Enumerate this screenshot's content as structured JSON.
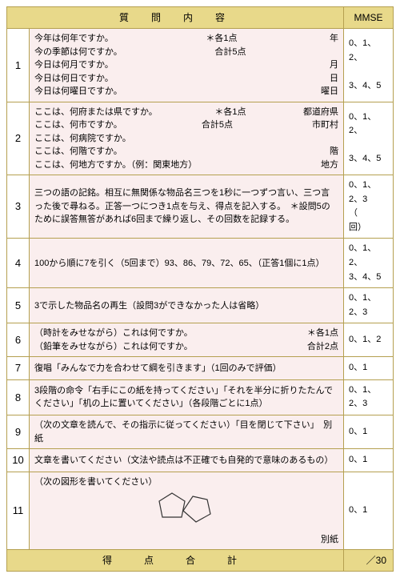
{
  "header": {
    "content": "質　問　内　容",
    "mmse": "MMSE"
  },
  "rows": [
    {
      "num": "1",
      "lines": [
        {
          "left": "今年は何年ですか。",
          "mid": "＊各1点",
          "right": "年"
        },
        {
          "left": "今の季節は何ですか。",
          "mid": "合計5点",
          "right": ""
        },
        {
          "left": "今日は何月ですか。",
          "mid": "",
          "right": "月"
        },
        {
          "left": "今日は何日ですか。",
          "mid": "",
          "right": "日"
        },
        {
          "left": "今日は何曜日ですか。",
          "mid": "",
          "right": "曜日"
        }
      ],
      "mmse": "0、1、2、\n\n3、4、5"
    },
    {
      "num": "2",
      "lines": [
        {
          "left": "ここは、何府または県ですか。",
          "mid": "＊各1点",
          "right": "都道府県"
        },
        {
          "left": "ここは、何市ですか。",
          "mid": "合計5点",
          "right": "市町村"
        },
        {
          "left": "ここは、何病院ですか。",
          "mid": "",
          "right": ""
        },
        {
          "left": "ここは、何階ですか。",
          "mid": "",
          "right": "階"
        },
        {
          "left": "ここは、何地方ですか。（例：関東地方）",
          "mid": "",
          "right": "地方"
        }
      ],
      "mmse": "0、1、2、\n\n3、4、5"
    },
    {
      "num": "3",
      "text": "三つの語の記銘。相互に無関係な物品名三つを1秒に一つずつ言い、三つ言った後で尋ねる。正答一つにつき1点を与え、得点を記入する。　＊設問5のために誤答無答があれば6回まで繰り返し、その回数を記録する。",
      "mmse": "0、1、2、3\n（　　回）"
    },
    {
      "num": "4",
      "text": "100から順に7を引く（5回まで）93、86、79、72、65、（正答1個に1点）",
      "mmse": "0、1、2、\n3、4、5"
    },
    {
      "num": "5",
      "text": "3で示した物品名の再生（設問3ができなかった人は省略）",
      "mmse": "0、1、2、3"
    },
    {
      "num": "6",
      "lines": [
        {
          "left": "（時計をみせながら）これは何ですか。",
          "mid": "",
          "right": "＊各1点"
        },
        {
          "left": "（鉛筆をみせながら）これは何ですか。",
          "mid": "",
          "right": "合計2点"
        }
      ],
      "mmse": "0、1、2"
    },
    {
      "num": "7",
      "text": "復唱「みんなで力を合わせて綱を引きます」（1回のみで評価）",
      "mmse": "0、1"
    },
    {
      "num": "8",
      "text": "3段階の命令「右手にこの紙を持ってください」「それを半分に折りたたんでください」「机の上に置いてください」（各段階ごとに1点）",
      "mmse": "0、1、2、3"
    },
    {
      "num": "9",
      "text": "（次の文章を読んで、その指示に従ってください）「目を閉じて下さい」　別紙",
      "mmse": "0、1"
    },
    {
      "num": "10",
      "text": "文章を書いてください（文法や読点は不正確でも自発的で意味のあるもの）",
      "mmse": "0、1"
    },
    {
      "num": "11",
      "text_top": "（次の図形を書いてください）",
      "text_bottom_right": "別紙",
      "has_figure": true,
      "mmse": "0、1"
    }
  ],
  "footer": {
    "label": "得　点　合　計",
    "total": "／30"
  },
  "colors": {
    "header_bg": "#e8d98a",
    "body_bg": "#faeeee",
    "border": "#b5a050"
  }
}
